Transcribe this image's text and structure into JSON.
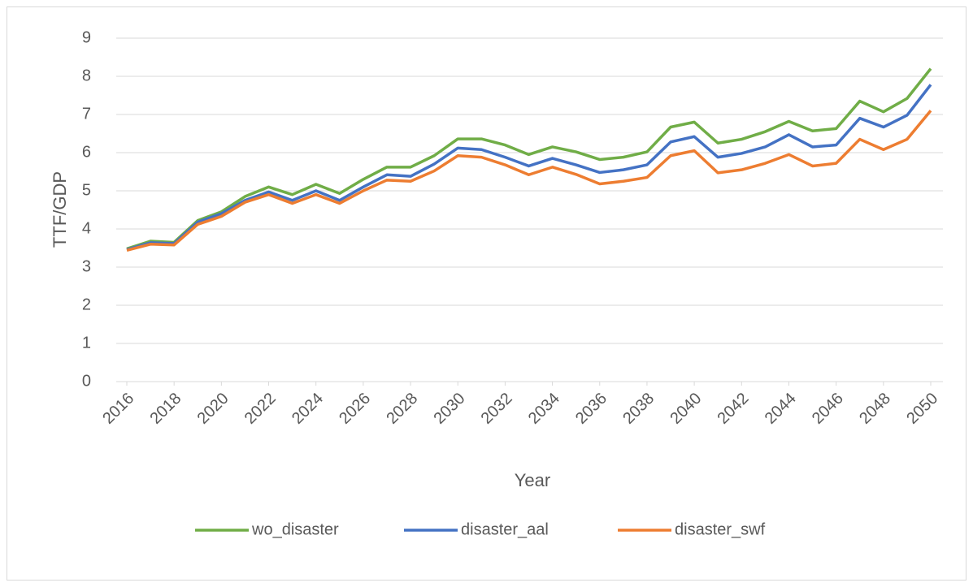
{
  "chart_data": {
    "type": "line",
    "x_label": "Year",
    "y_label": "TTF/GDP",
    "x": [
      2016,
      2017,
      2018,
      2019,
      2020,
      2021,
      2022,
      2023,
      2024,
      2025,
      2026,
      2027,
      2028,
      2029,
      2030,
      2031,
      2032,
      2033,
      2034,
      2035,
      2036,
      2037,
      2038,
      2039,
      2040,
      2041,
      2042,
      2043,
      2044,
      2045,
      2046,
      2047,
      2048,
      2049,
      2050
    ],
    "xlim": [
      2016,
      2050
    ],
    "xticks": [
      2016,
      2018,
      2020,
      2022,
      2024,
      2026,
      2028,
      2030,
      2032,
      2034,
      2036,
      2038,
      2040,
      2042,
      2044,
      2046,
      2048,
      2050
    ],
    "ylim": [
      0,
      9
    ],
    "yticks": [
      0,
      1,
      2,
      3,
      4,
      5,
      6,
      7,
      8,
      9
    ],
    "grid": true,
    "legend": "bottom",
    "series": [
      {
        "name": "wo_disaster",
        "color": "#70ad47",
        "values": [
          3.48,
          3.68,
          3.65,
          4.22,
          4.45,
          4.85,
          5.1,
          4.9,
          5.17,
          4.93,
          5.3,
          5.62,
          5.62,
          5.92,
          6.36,
          6.36,
          6.2,
          5.95,
          6.15,
          6.02,
          5.82,
          5.88,
          6.02,
          6.67,
          6.8,
          6.25,
          6.35,
          6.55,
          6.82,
          6.57,
          6.63,
          7.35,
          7.07,
          7.42,
          8.2
        ]
      },
      {
        "name": "disaster_aal",
        "color": "#4472c4",
        "values": [
          3.46,
          3.64,
          3.62,
          4.18,
          4.4,
          4.75,
          4.97,
          4.75,
          5.0,
          4.75,
          5.1,
          5.42,
          5.38,
          5.7,
          6.12,
          6.08,
          5.88,
          5.65,
          5.85,
          5.68,
          5.48,
          5.55,
          5.68,
          6.28,
          6.42,
          5.88,
          5.98,
          6.15,
          6.47,
          6.15,
          6.2,
          6.9,
          6.67,
          6.98,
          7.78
        ]
      },
      {
        "name": "disaster_swf",
        "color": "#ed7d31",
        "values": [
          3.44,
          3.6,
          3.58,
          4.12,
          4.33,
          4.7,
          4.9,
          4.67,
          4.9,
          4.67,
          5.0,
          5.28,
          5.25,
          5.52,
          5.92,
          5.88,
          5.68,
          5.42,
          5.62,
          5.43,
          5.18,
          5.25,
          5.35,
          5.92,
          6.05,
          5.47,
          5.55,
          5.72,
          5.95,
          5.65,
          5.72,
          6.35,
          6.08,
          6.35,
          7.1
        ]
      }
    ]
  }
}
